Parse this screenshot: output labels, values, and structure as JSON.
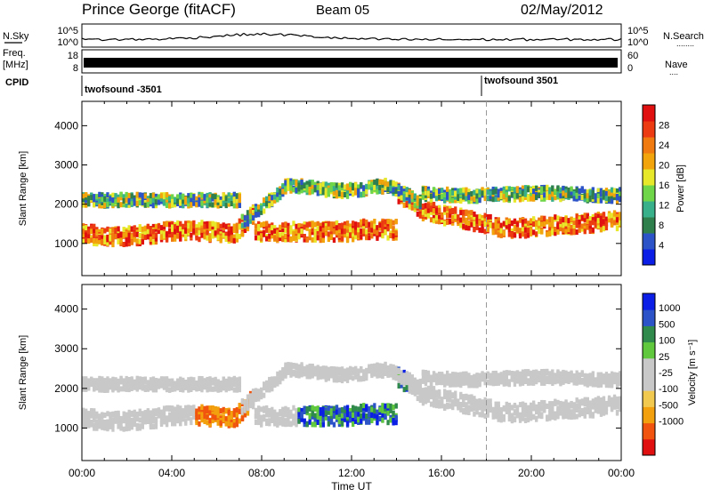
{
  "header": {
    "station": "Prince George (fitACF)",
    "beam": "Beam 05",
    "date": "02/May/2012"
  },
  "left_labels": {
    "nsky": "N.Sky",
    "freq_line1": "Freq.",
    "freq_line2": "[MHz]",
    "cpid": "CPID"
  },
  "right_labels": {
    "nsearch": "N.Search",
    "nsearch_dots": "........",
    "nave": "Nave",
    "nave_dots": "...."
  },
  "cpid_entries": [
    {
      "label": "twofsound -3501",
      "start_hour": 0
    },
    {
      "label": "twofsound 3501",
      "start_hour": 18
    }
  ],
  "colors": {
    "power_bar": [
      "#0a1ee6",
      "#2c54c8",
      "#2f7f4c",
      "#38b08a",
      "#6fd64a",
      "#e8e82a",
      "#f2a40d",
      "#f07a10",
      "#ec3a12",
      "#e01010"
    ],
    "velocity_bar": [
      "#e01010",
      "#f0540e",
      "#f2a00d",
      "#f2c94f",
      "#c8c8c8",
      "#c8c8c8",
      "#60c83c",
      "#2f8a4c",
      "#2c54c8",
      "#0a1ee6"
    ]
  },
  "chart_data": [
    {
      "type": "line",
      "name": "noise-strip",
      "x_range_hours": [
        0,
        24
      ],
      "left_ticks": [
        "10^5",
        "10^0"
      ],
      "right_ticks": [
        "10^5",
        "10^0"
      ]
    },
    {
      "type": "line",
      "name": "frequency-strip",
      "left_ticks": [
        "18",
        "8"
      ],
      "right_ticks": [
        "60",
        "0"
      ]
    },
    {
      "type": "heatmap",
      "name": "power",
      "ylabel": "Slant Range [km]",
      "ylim": [
        180,
        4620
      ],
      "yticks": [
        1000,
        2000,
        3000,
        4000
      ],
      "colorbar_label": "Power [dB]",
      "colorbar_ticks": [
        4,
        8,
        12,
        16,
        20,
        24,
        28
      ]
    },
    {
      "type": "heatmap",
      "name": "velocity",
      "ylabel": "Slant Range [km]",
      "ylim": [
        180,
        4620
      ],
      "yticks": [
        1000,
        2000,
        3000,
        4000
      ],
      "colorbar_label": "Velocity [m s⁻¹]",
      "colorbar_ticks": [
        "1000",
        "500",
        "100",
        "25",
        "-25",
        "-100",
        "-500",
        "-1000"
      ],
      "xlabel": "Time UT",
      "xticks": [
        "00:00",
        "04:00",
        "08:00",
        "12:00",
        "16:00",
        "20:00",
        "00:00"
      ],
      "xlim_hours": [
        0,
        24
      ]
    }
  ]
}
